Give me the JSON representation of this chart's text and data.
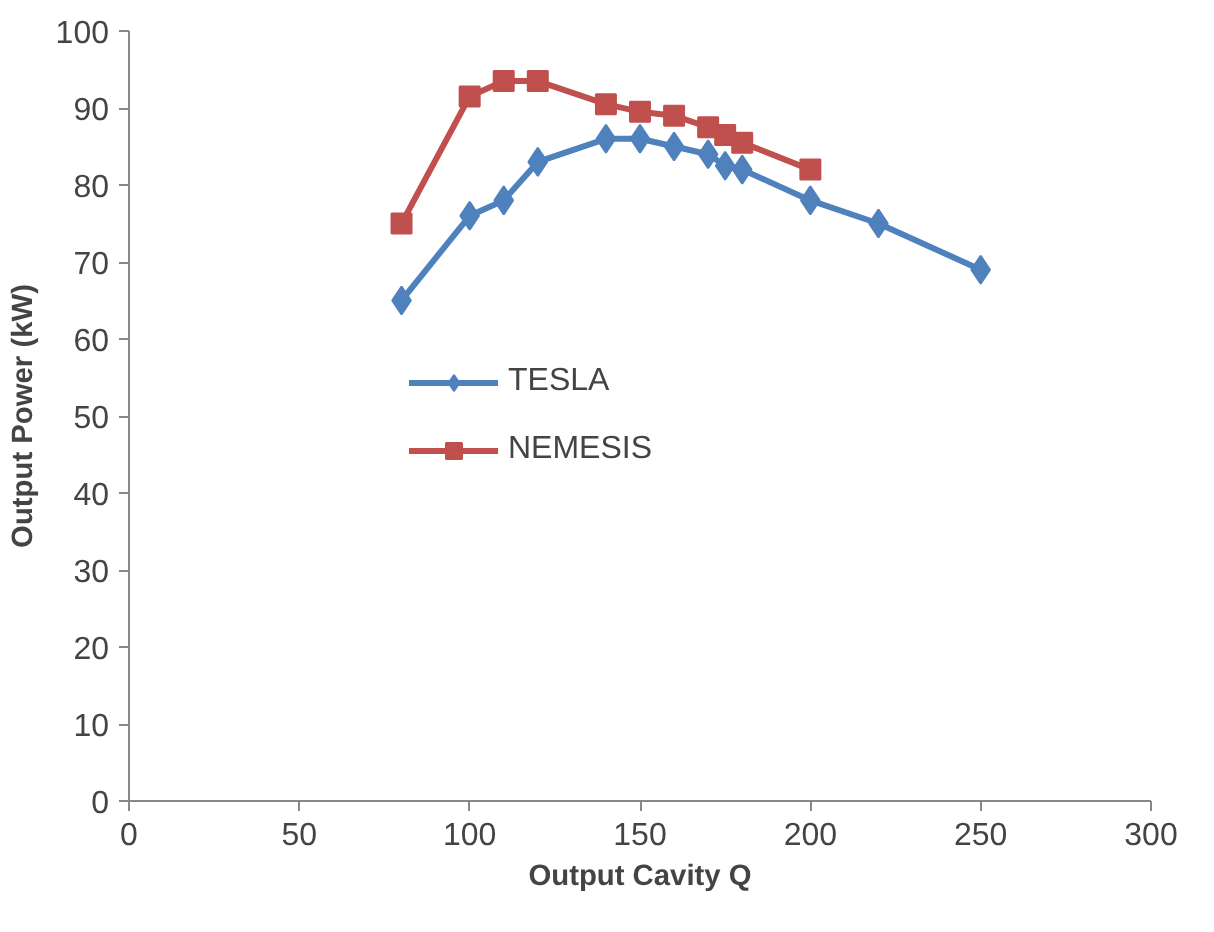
{
  "chart_data": {
    "type": "line",
    "xlabel": "Output Cavity Q",
    "ylabel": "Output Power (kW)",
    "xlim": [
      0,
      300
    ],
    "xticks": [
      0,
      50,
      100,
      150,
      200,
      250,
      300
    ],
    "ylim": [
      0,
      100
    ],
    "yticks": [
      0,
      10,
      20,
      30,
      40,
      50,
      60,
      70,
      80,
      90,
      100
    ],
    "grid": false,
    "legend": "center left",
    "line_style": "solid",
    "series": [
      {
        "name": "TESLA",
        "color": "#4f81bd",
        "marker": "diamond",
        "x": [
          80,
          100,
          110,
          120,
          140,
          150,
          160,
          170,
          175,
          180,
          200,
          220,
          250
        ],
        "values": [
          65,
          76,
          78,
          83,
          86,
          86,
          85,
          84,
          82.5,
          82,
          78,
          75,
          69
        ]
      },
      {
        "name": "NEMESIS",
        "color": "#c0504d",
        "marker": "square",
        "x": [
          80,
          100,
          110,
          120,
          140,
          150,
          160,
          170,
          175,
          180,
          200
        ],
        "values": [
          75,
          91.5,
          93.5,
          93.5,
          90.5,
          89.5,
          89,
          87.5,
          86.5,
          85.5,
          82
        ]
      }
    ]
  }
}
